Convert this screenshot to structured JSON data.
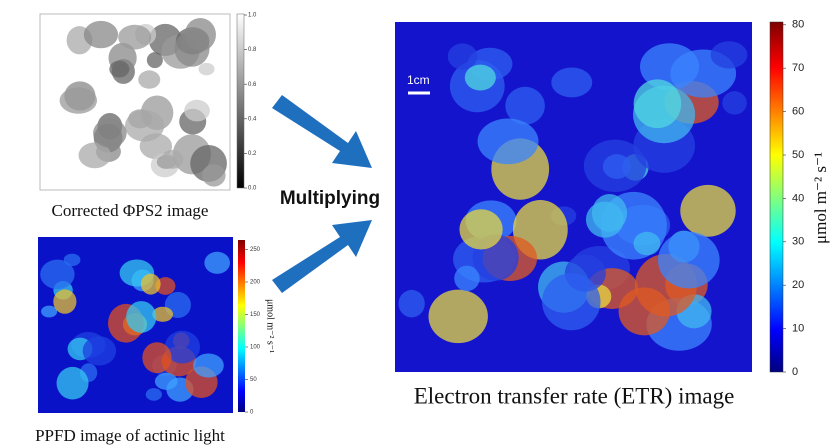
{
  "panels": {
    "phi": {
      "caption": "Corrected ΦPS2 image",
      "colorbar": {
        "ticks": [
          "0.0",
          "0.2",
          "0.4",
          "0.6",
          "0.8",
          "1.0"
        ]
      }
    },
    "ppfd": {
      "caption": "PPFD image of actinic light",
      "colorbar": {
        "ticks": [
          "0",
          "50",
          "100",
          "150",
          "200",
          "250"
        ],
        "label": "μmol m⁻² s⁻¹"
      }
    },
    "etr": {
      "caption": "Electron transfer rate (ETR) image",
      "scale_bar": "1cm",
      "colorbar": {
        "ticks": [
          "0",
          "10",
          "20",
          "30",
          "40",
          "50",
          "60",
          "70",
          "80"
        ],
        "label": "μmol m⁻² s⁻¹"
      }
    }
  },
  "operation": "Multiplying"
}
